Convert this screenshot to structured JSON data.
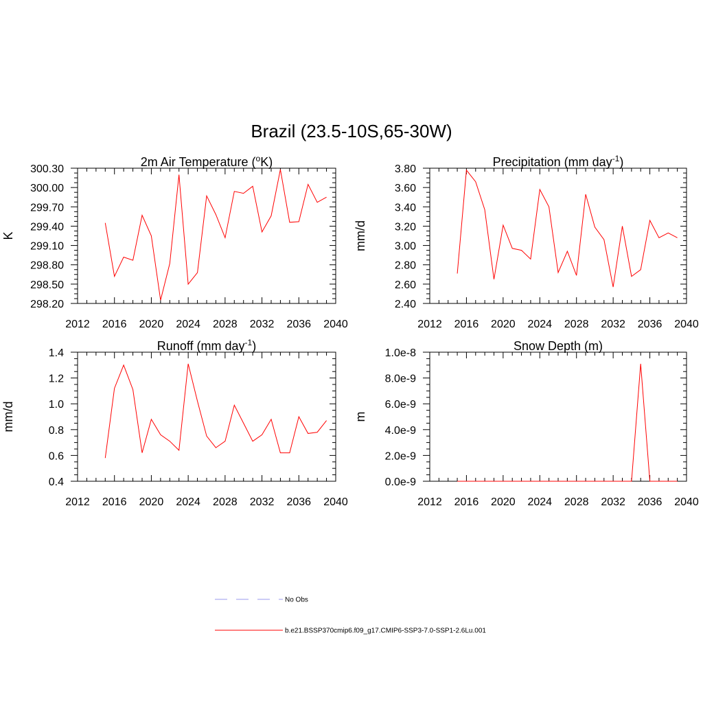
{
  "figure": {
    "title": "Brazil (23.5-10S,65-30W)",
    "colors": {
      "model_line": "#ff0000",
      "obs_line": "#9999ee",
      "axes": "#000000"
    }
  },
  "legend": {
    "placement": "bottom-center",
    "items": [
      {
        "label": "No Obs",
        "style": "dashed",
        "color": "#9999ee"
      },
      {
        "label": "b.e21.BSSP370cmip6.f09_g17.CMIP6-SSP3-7.0-SSP1-2.6Lu.001",
        "style": "solid",
        "color": "#ff0000"
      }
    ]
  },
  "chart_data": [
    {
      "type": "line",
      "title": "2m Air Temperature (",
      "title_sup": "o",
      "title_after": "K)",
      "ylabel": "K",
      "xlim": [
        2012,
        2040
      ],
      "ylim": [
        298.2,
        300.3
      ],
      "xticks": [
        2012,
        2016,
        2020,
        2024,
        2028,
        2032,
        2036,
        2040
      ],
      "yticks": [
        "298.20",
        "298.50",
        "298.80",
        "299.10",
        "299.40",
        "299.70",
        "300.00",
        "300.30"
      ],
      "grid": false,
      "x": [
        2015,
        2016,
        2017,
        2018,
        2019,
        2020,
        2021,
        2022,
        2023,
        2024,
        2025,
        2026,
        2027,
        2028,
        2029,
        2030,
        2031,
        2032,
        2033,
        2034,
        2035,
        2036,
        2037,
        2038,
        2039
      ],
      "series": [
        {
          "values": [
            299.45,
            298.62,
            298.92,
            298.87,
            299.57,
            299.25,
            298.25,
            298.82,
            300.2,
            298.5,
            298.68,
            299.87,
            299.58,
            299.22,
            299.94,
            299.91,
            300.02,
            299.31,
            299.56,
            300.28,
            299.46,
            299.47,
            300.05,
            299.77,
            299.85
          ]
        }
      ]
    },
    {
      "type": "line",
      "title": "Precipitation (mm day",
      "title_sup": "-1",
      "title_after": ")",
      "ylabel": "mm/d",
      "xlim": [
        2012,
        2040
      ],
      "ylim": [
        2.4,
        3.8
      ],
      "xticks": [
        2012,
        2016,
        2020,
        2024,
        2028,
        2032,
        2036,
        2040
      ],
      "yticks": [
        "2.40",
        "2.60",
        "2.80",
        "3.00",
        "3.20",
        "3.40",
        "3.60",
        "3.80"
      ],
      "grid": false,
      "x": [
        2015,
        2016,
        2017,
        2018,
        2019,
        2020,
        2021,
        2022,
        2023,
        2024,
        2025,
        2026,
        2027,
        2028,
        2029,
        2030,
        2031,
        2032,
        2033,
        2034,
        2035,
        2036,
        2037,
        2038,
        2039
      ],
      "series": [
        {
          "values": [
            2.71,
            3.78,
            3.66,
            3.37,
            2.65,
            3.21,
            2.97,
            2.95,
            2.86,
            3.58,
            3.4,
            2.72,
            2.94,
            2.69,
            3.53,
            3.19,
            3.06,
            2.57,
            3.2,
            2.68,
            2.75,
            3.26,
            3.08,
            3.13,
            3.08
          ]
        }
      ]
    },
    {
      "type": "line",
      "title": "Runoff (mm day",
      "title_sup": "-1",
      "title_after": ")",
      "ylabel": "mm/d",
      "xlim": [
        2012,
        2040
      ],
      "ylim": [
        0.4,
        1.4
      ],
      "xticks": [
        2012,
        2016,
        2020,
        2024,
        2028,
        2032,
        2036,
        2040
      ],
      "yticks": [
        "0.4",
        "0.6",
        "0.8",
        "1.0",
        "1.2",
        "1.4"
      ],
      "grid": false,
      "x": [
        2015,
        2016,
        2017,
        2018,
        2019,
        2020,
        2021,
        2022,
        2023,
        2024,
        2025,
        2026,
        2027,
        2028,
        2029,
        2030,
        2031,
        2032,
        2033,
        2034,
        2035,
        2036,
        2037,
        2038,
        2039
      ],
      "series": [
        {
          "values": [
            0.58,
            1.12,
            1.3,
            1.11,
            0.62,
            0.88,
            0.76,
            0.71,
            0.64,
            1.31,
            1.02,
            0.75,
            0.66,
            0.71,
            0.99,
            0.85,
            0.71,
            0.76,
            0.88,
            0.62,
            0.62,
            0.9,
            0.77,
            0.78,
            0.87
          ]
        }
      ]
    },
    {
      "type": "line",
      "title": "Snow Depth (m)",
      "title_sup": "",
      "title_after": "",
      "ylabel": "m",
      "xlim": [
        2012,
        2040
      ],
      "ylim": [
        0,
        1e-08
      ],
      "xticks": [
        2012,
        2016,
        2020,
        2024,
        2028,
        2032,
        2036,
        2040
      ],
      "yticks": [
        "0.0e-9",
        "2.0e-9",
        "4.0e-9",
        "6.0e-9",
        "8.0e-9",
        "1.0e-8"
      ],
      "grid": false,
      "x": [
        2015,
        2016,
        2017,
        2018,
        2019,
        2020,
        2021,
        2022,
        2023,
        2024,
        2025,
        2026,
        2027,
        2028,
        2029,
        2030,
        2031,
        2032,
        2033,
        2034,
        2035,
        2036,
        2037,
        2038,
        2039
      ],
      "series": [
        {
          "values": [
            0,
            0,
            0,
            0,
            0,
            0,
            0,
            0,
            0,
            0,
            0,
            0,
            0,
            0,
            0,
            0,
            0,
            0,
            0,
            0,
            9.1e-09,
            0,
            0,
            0,
            0
          ]
        }
      ]
    }
  ]
}
